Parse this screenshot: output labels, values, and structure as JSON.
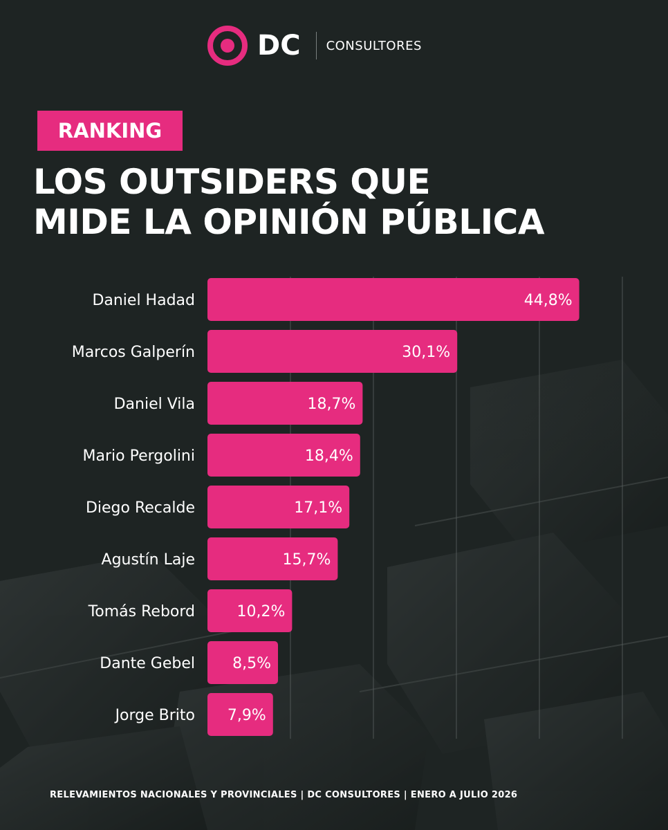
{
  "brand": {
    "name": "DC",
    "subtitle": "CONSULTORES",
    "accent_color": "#e62c7f",
    "icon": "target-logo-icon"
  },
  "tag": "RANKING",
  "title_lines": [
    "LOS OUTSIDERS QUE",
    "MIDE LA OPINIÓN PÚBLICA"
  ],
  "footer": "RELEVAMIENTOS NACIONALES Y PROVINCIALES | DC CONSULTORES | ENERO A JULIO 2026",
  "chart_data": {
    "type": "bar",
    "orientation": "horizontal",
    "categories": [
      "Daniel Hadad",
      "Marcos Galperín",
      "Daniel Vila",
      "Mario Pergolini",
      "Diego Recalde",
      "Agustín Laje",
      "Tomás Rebord",
      "Dante Gebel",
      "Jorge Brito"
    ],
    "values": [
      44.8,
      30.1,
      18.7,
      18.4,
      17.1,
      15.7,
      10.2,
      8.5,
      7.9
    ],
    "value_labels": [
      "44,8%",
      "30,1%",
      "18,7%",
      "18,4%",
      "17,1%",
      "15,7%",
      "10,2%",
      "8,5%",
      "7,9%"
    ],
    "xlim": [
      0,
      50
    ],
    "grid": true,
    "bar_color": "#e62c7f"
  }
}
